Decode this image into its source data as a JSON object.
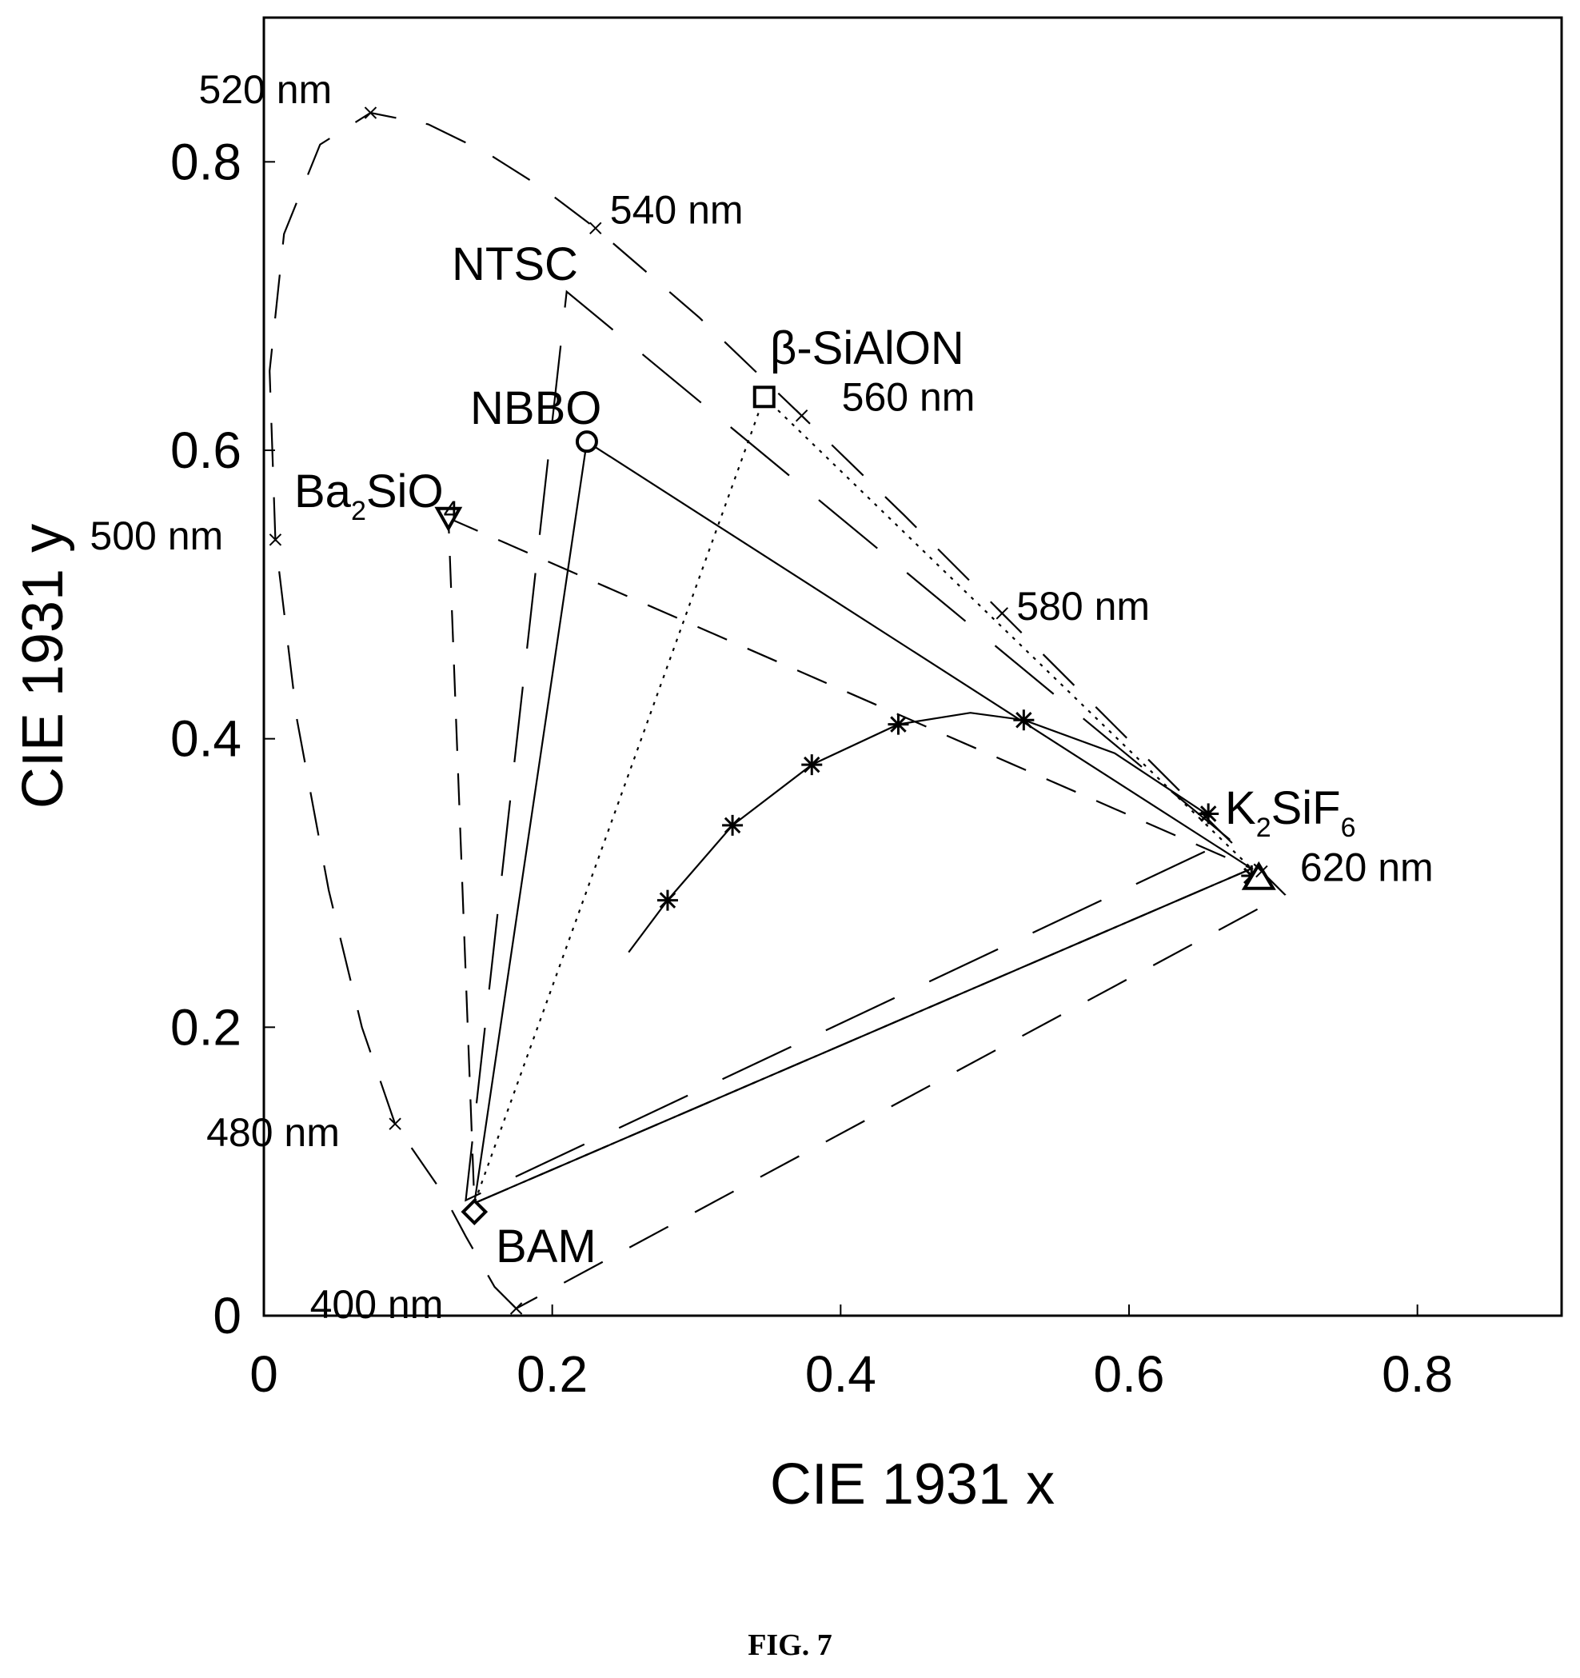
{
  "chart_data": {
    "type": "scatter",
    "xlabel": "CIE 1931 x",
    "ylabel": "CIE 1931 y",
    "xlim": [
      0,
      0.9
    ],
    "ylim": [
      0,
      0.9
    ],
    "xticks": [
      "0",
      "0.2",
      "0.4",
      "0.6",
      "0.8"
    ],
    "yticks": [
      "0",
      "0.2",
      "0.4",
      "0.6",
      "0.8"
    ],
    "grid": false,
    "spectral_locus": {
      "style": "long-dash",
      "points": [
        {
          "x": 0.175,
          "y": 0.005
        },
        {
          "x": 0.16,
          "y": 0.02
        },
        {
          "x": 0.14,
          "y": 0.055
        },
        {
          "x": 0.124,
          "y": 0.085
        },
        {
          "x": 0.091,
          "y": 0.133
        },
        {
          "x": 0.068,
          "y": 0.2
        },
        {
          "x": 0.045,
          "y": 0.295
        },
        {
          "x": 0.023,
          "y": 0.413
        },
        {
          "x": 0.008,
          "y": 0.538
        },
        {
          "x": 0.004,
          "y": 0.655
        },
        {
          "x": 0.014,
          "y": 0.75
        },
        {
          "x": 0.039,
          "y": 0.812
        },
        {
          "x": 0.074,
          "y": 0.834
        },
        {
          "x": 0.114,
          "y": 0.826
        },
        {
          "x": 0.155,
          "y": 0.806
        },
        {
          "x": 0.193,
          "y": 0.782
        },
        {
          "x": 0.23,
          "y": 0.754
        },
        {
          "x": 0.302,
          "y": 0.692
        },
        {
          "x": 0.373,
          "y": 0.624
        },
        {
          "x": 0.444,
          "y": 0.555
        },
        {
          "x": 0.512,
          "y": 0.487
        },
        {
          "x": 0.575,
          "y": 0.424
        },
        {
          "x": 0.627,
          "y": 0.372
        },
        {
          "x": 0.665,
          "y": 0.334
        },
        {
          "x": 0.692,
          "y": 0.308
        },
        {
          "x": 0.708,
          "y": 0.292
        }
      ]
    },
    "wavelength_labels": [
      {
        "label": "400 nm",
        "x": 0.175,
        "y": 0.005
      },
      {
        "label": "480 nm",
        "x": 0.091,
        "y": 0.133
      },
      {
        "label": "500 nm",
        "x": 0.008,
        "y": 0.538
      },
      {
        "label": "520 nm",
        "x": 0.074,
        "y": 0.834
      },
      {
        "label": "540 nm",
        "x": 0.23,
        "y": 0.754
      },
      {
        "label": "560 nm",
        "x": 0.373,
        "y": 0.624
      },
      {
        "label": "580 nm",
        "x": 0.512,
        "y": 0.487
      },
      {
        "label": "620 nm",
        "x": 0.692,
        "y": 0.308
      }
    ],
    "ntsc_triangle": {
      "label": "NTSC",
      "style": "very-long-dash",
      "points": [
        {
          "x": 0.67,
          "y": 0.33
        },
        {
          "x": 0.21,
          "y": 0.71
        },
        {
          "x": 0.14,
          "y": 0.08
        }
      ]
    },
    "planckian_locus": {
      "style": "solid",
      "points": [
        {
          "x": 0.253,
          "y": 0.252
        },
        {
          "x": 0.28,
          "y": 0.288
        },
        {
          "x": 0.325,
          "y": 0.34
        },
        {
          "x": 0.38,
          "y": 0.382
        },
        {
          "x": 0.44,
          "y": 0.41
        },
        {
          "x": 0.49,
          "y": 0.418
        },
        {
          "x": 0.527,
          "y": 0.413
        },
        {
          "x": 0.59,
          "y": 0.39
        },
        {
          "x": 0.658,
          "y": 0.345
        }
      ],
      "markers": [
        {
          "x": 0.28,
          "y": 0.288
        },
        {
          "x": 0.325,
          "y": 0.34
        },
        {
          "x": 0.38,
          "y": 0.382
        },
        {
          "x": 0.44,
          "y": 0.41
        },
        {
          "x": 0.527,
          "y": 0.413
        },
        {
          "x": 0.655,
          "y": 0.348
        },
        {
          "x": 0.685,
          "y": 0.305
        }
      ]
    },
    "phosphors": [
      {
        "label": "BAM",
        "marker": "diamond",
        "x": 0.146,
        "y": 0.072
      },
      {
        "label": "NBBO",
        "marker": "circle",
        "x": 0.224,
        "y": 0.606
      },
      {
        "label": "β-SiAlON",
        "marker": "square",
        "x": 0.347,
        "y": 0.637
      },
      {
        "label": "Ba2SiO4",
        "label_main": "Ba",
        "label_sub1": "2",
        "label_mid": "SiO",
        "label_sub2": "4",
        "marker": "triangle-down",
        "x": 0.128,
        "y": 0.553
      },
      {
        "label": "K2SiF6",
        "label_main": "K",
        "label_sub1": "2",
        "label_mid": "SiF",
        "label_sub2": "6",
        "marker": "triangle",
        "x": 0.69,
        "y": 0.304
      }
    ],
    "gamut_triangles": [
      {
        "name": "NBBO",
        "style": "solid",
        "points": [
          {
            "x": 0.224,
            "y": 0.606
          },
          {
            "x": 0.685,
            "y": 0.31
          },
          {
            "x": 0.146,
            "y": 0.078
          }
        ]
      },
      {
        "name": "β-SiAlON",
        "style": "dotted",
        "points": [
          {
            "x": 0.347,
            "y": 0.637
          },
          {
            "x": 0.685,
            "y": 0.31
          },
          {
            "x": 0.146,
            "y": 0.078
          }
        ]
      },
      {
        "name": "Ba2SiO4",
        "style": "dashed",
        "points": [
          {
            "x": 0.128,
            "y": 0.553
          },
          {
            "x": 0.685,
            "y": 0.31
          },
          {
            "x": 0.146,
            "y": 0.078
          }
        ]
      }
    ]
  },
  "caption": "FIG. 7"
}
